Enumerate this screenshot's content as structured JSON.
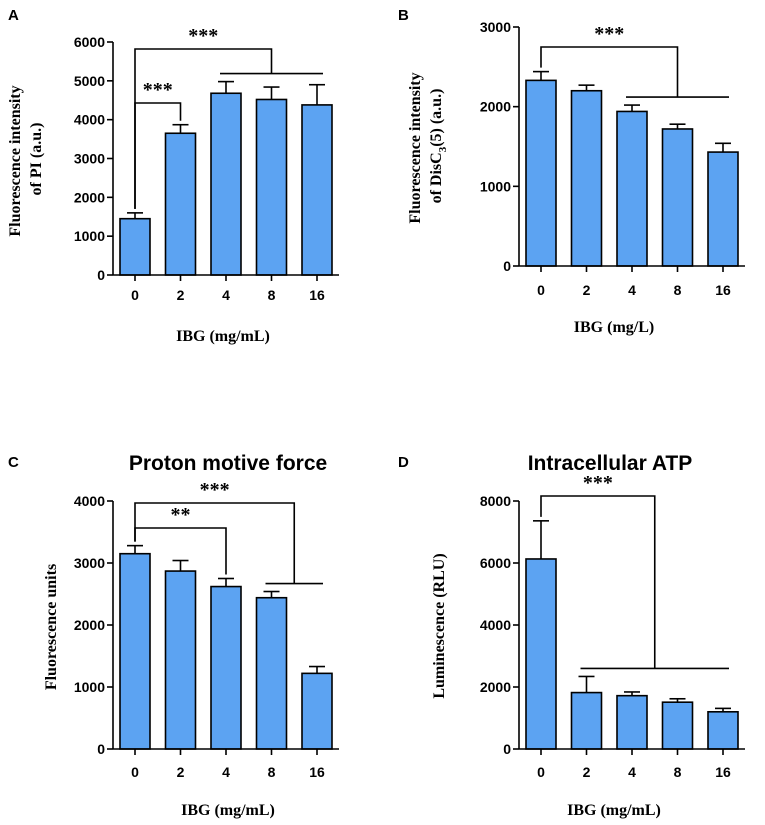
{
  "chart_data": [
    {
      "type": "bar",
      "panel": "A",
      "title": "",
      "ylabel_lines": [
        "Fluorescence intensity",
        "of PI (a.u.)"
      ],
      "xlabel": "IBG (mg/mL)",
      "categories": [
        "0",
        "2",
        "4",
        "8",
        "16"
      ],
      "values": [
        1450,
        3650,
        4680,
        4520,
        4380
      ],
      "errors": [
        150,
        220,
        300,
        320,
        520
      ],
      "ylim": [
        0,
        6000
      ],
      "yticks": [
        0,
        1000,
        2000,
        3000,
        4000,
        5000,
        6000
      ],
      "significance": [
        {
          "label": "***",
          "ref": 0,
          "targets": [
            2,
            3,
            4
          ]
        },
        {
          "label": "***",
          "ref": 0,
          "targets": [
            1
          ]
        }
      ]
    },
    {
      "type": "bar",
      "panel": "B",
      "title": "",
      "ylabel_lines": [
        "Fluorescence intensity",
        "of DisC3(5) (a.u.)"
      ],
      "xlabel": "IBG (mg/L)",
      "categories": [
        "0",
        "2",
        "4",
        "8",
        "16"
      ],
      "values": [
        2330,
        2200,
        1940,
        1720,
        1430
      ],
      "errors": [
        110,
        70,
        80,
        60,
        110
      ],
      "ylim": [
        0,
        3000
      ],
      "yticks": [
        0,
        1000,
        2000,
        3000
      ],
      "significance": [
        {
          "label": "***",
          "ref": 0,
          "targets": [
            2,
            3,
            4
          ]
        }
      ]
    },
    {
      "type": "bar",
      "panel": "C",
      "title": "Proton motive force",
      "ylabel_lines": [
        "Fluorescence units"
      ],
      "xlabel": "IBG (mg/mL)",
      "categories": [
        "0",
        "2",
        "4",
        "8",
        "16"
      ],
      "values": [
        3150,
        2870,
        2620,
        2440,
        1220
      ],
      "errors": [
        130,
        170,
        130,
        100,
        110
      ],
      "ylim": [
        0,
        4000
      ],
      "yticks": [
        0,
        1000,
        2000,
        3000,
        4000
      ],
      "significance": [
        {
          "label": "***",
          "ref": 0,
          "targets": [
            3,
            4
          ]
        },
        {
          "label": "**",
          "ref": 0,
          "targets": [
            2
          ]
        }
      ]
    },
    {
      "type": "bar",
      "panel": "D",
      "title": "Intracellular ATP",
      "ylabel_lines": [
        "Luminescence (RLU)"
      ],
      "xlabel": "IBG (mg/mL)",
      "categories": [
        "0",
        "2",
        "4",
        "8",
        "16"
      ],
      "values": [
        6130,
        1820,
        1720,
        1510,
        1200
      ],
      "errors": [
        1230,
        520,
        120,
        110,
        110
      ],
      "ylim": [
        0,
        8000
      ],
      "yticks": [
        0,
        2000,
        4000,
        6000,
        8000
      ],
      "significance": [
        {
          "label": "***",
          "ref": 0,
          "targets": [
            1,
            2,
            3,
            4
          ]
        }
      ]
    }
  ]
}
